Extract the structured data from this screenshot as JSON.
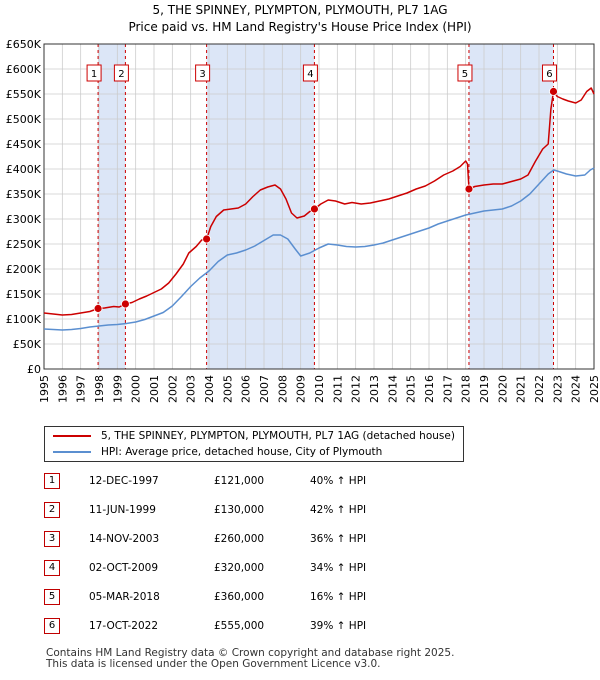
{
  "title": {
    "line1": "5, THE SPINNEY, PLYMPTON, PLYMOUTH, PL7 1AG",
    "line2": "Price paid vs. HM Land Registry's House Price Index (HPI)"
  },
  "colors": {
    "property": "#cc0000",
    "hpi": "#5b8fd0",
    "shade": "#dce6f7",
    "vline": "#cc0000",
    "grid": "#cccccc"
  },
  "chart_data": {
    "type": "line",
    "xlim": [
      1995,
      2025
    ],
    "ylim": [
      0,
      650000
    ],
    "yticks": [
      {
        "value": 0,
        "label": "£0"
      },
      {
        "value": 50000,
        "label": "£50K"
      },
      {
        "value": 100000,
        "label": "£100K"
      },
      {
        "value": 150000,
        "label": "£150K"
      },
      {
        "value": 200000,
        "label": "£200K"
      },
      {
        "value": 250000,
        "label": "£250K"
      },
      {
        "value": 300000,
        "label": "£300K"
      },
      {
        "value": 350000,
        "label": "£350K"
      },
      {
        "value": 400000,
        "label": "£400K"
      },
      {
        "value": 450000,
        "label": "£450K"
      },
      {
        "value": 500000,
        "label": "£500K"
      },
      {
        "value": 550000,
        "label": "£550K"
      },
      {
        "value": 600000,
        "label": "£600K"
      },
      {
        "value": 650000,
        "label": "£650K"
      }
    ],
    "xticks": [
      "1995",
      "1996",
      "1997",
      "1998",
      "1999",
      "2000",
      "2001",
      "2002",
      "2003",
      "2004",
      "2005",
      "2006",
      "2007",
      "2008",
      "2009",
      "2010",
      "2011",
      "2012",
      "2013",
      "2014",
      "2015",
      "2016",
      "2017",
      "2018",
      "2019",
      "2020",
      "2021",
      "2022",
      "2023",
      "2024",
      "2025"
    ],
    "grid": true,
    "shaded_ranges": [
      [
        1997.95,
        1999.44
      ],
      [
        2003.87,
        2009.75
      ],
      [
        2018.18,
        2022.79
      ]
    ],
    "series": [
      {
        "name": "5, THE SPINNEY, PLYMPTON, PLYMOUTH, PL7 1AG (detached house)",
        "color": "#cc0000",
        "points": [
          [
            1995.0,
            112000
          ],
          [
            1995.5,
            110000
          ],
          [
            1996.0,
            108000
          ],
          [
            1996.5,
            109000
          ],
          [
            1997.0,
            112000
          ],
          [
            1997.5,
            115000
          ],
          [
            1997.95,
            121000
          ],
          [
            1998.3,
            122000
          ],
          [
            1998.8,
            125000
          ],
          [
            1999.1,
            124000
          ],
          [
            1999.44,
            130000
          ],
          [
            1999.8,
            133000
          ],
          [
            2000.2,
            140000
          ],
          [
            2000.6,
            146000
          ],
          [
            2001.0,
            153000
          ],
          [
            2001.4,
            160000
          ],
          [
            2001.8,
            172000
          ],
          [
            2002.2,
            190000
          ],
          [
            2002.6,
            210000
          ],
          [
            2002.9,
            232000
          ],
          [
            2003.3,
            245000
          ],
          [
            2003.6,
            258000
          ],
          [
            2003.87,
            260000
          ],
          [
            2004.1,
            285000
          ],
          [
            2004.4,
            305000
          ],
          [
            2004.8,
            318000
          ],
          [
            2005.2,
            320000
          ],
          [
            2005.6,
            322000
          ],
          [
            2006.0,
            330000
          ],
          [
            2006.4,
            345000
          ],
          [
            2006.8,
            358000
          ],
          [
            2007.2,
            364000
          ],
          [
            2007.6,
            368000
          ],
          [
            2007.9,
            360000
          ],
          [
            2008.2,
            340000
          ],
          [
            2008.5,
            312000
          ],
          [
            2008.8,
            302000
          ],
          [
            2009.2,
            306000
          ],
          [
            2009.5,
            315000
          ],
          [
            2009.75,
            320000
          ],
          [
            2010.1,
            330000
          ],
          [
            2010.5,
            338000
          ],
          [
            2010.9,
            336000
          ],
          [
            2011.4,
            330000
          ],
          [
            2011.8,
            333000
          ],
          [
            2012.3,
            330000
          ],
          [
            2012.8,
            332000
          ],
          [
            2013.3,
            336000
          ],
          [
            2013.8,
            340000
          ],
          [
            2014.3,
            346000
          ],
          [
            2014.8,
            352000
          ],
          [
            2015.3,
            360000
          ],
          [
            2015.8,
            366000
          ],
          [
            2016.3,
            376000
          ],
          [
            2016.8,
            388000
          ],
          [
            2017.3,
            396000
          ],
          [
            2017.7,
            405000
          ],
          [
            2018.0,
            416000
          ],
          [
            2018.1,
            410000
          ],
          [
            2018.18,
            360000
          ],
          [
            2018.5,
            365000
          ],
          [
            2019.0,
            368000
          ],
          [
            2019.5,
            370000
          ],
          [
            2020.0,
            370000
          ],
          [
            2020.5,
            375000
          ],
          [
            2021.0,
            380000
          ],
          [
            2021.4,
            388000
          ],
          [
            2021.8,
            415000
          ],
          [
            2022.2,
            440000
          ],
          [
            2022.5,
            450000
          ],
          [
            2022.65,
            520000
          ],
          [
            2022.79,
            555000
          ],
          [
            2023.0,
            545000
          ],
          [
            2023.3,
            540000
          ],
          [
            2023.6,
            536000
          ],
          [
            2024.0,
            532000
          ],
          [
            2024.3,
            538000
          ],
          [
            2024.6,
            555000
          ],
          [
            2024.85,
            562000
          ],
          [
            2025.0,
            550000
          ]
        ]
      },
      {
        "name": "HPI: Average price, detached house, City of Plymouth",
        "color": "#5b8fd0",
        "points": [
          [
            1995.0,
            80000
          ],
          [
            1995.5,
            79000
          ],
          [
            1996.0,
            78000
          ],
          [
            1996.5,
            79000
          ],
          [
            1997.0,
            81000
          ],
          [
            1997.5,
            84000
          ],
          [
            1998.0,
            86000
          ],
          [
            1998.5,
            88000
          ],
          [
            1999.0,
            89000
          ],
          [
            1999.5,
            91000
          ],
          [
            2000.0,
            94000
          ],
          [
            2000.5,
            99000
          ],
          [
            2001.0,
            106000
          ],
          [
            2001.5,
            113000
          ],
          [
            2002.0,
            126000
          ],
          [
            2002.5,
            145000
          ],
          [
            2003.0,
            165000
          ],
          [
            2003.5,
            182000
          ],
          [
            2004.0,
            196000
          ],
          [
            2004.5,
            215000
          ],
          [
            2005.0,
            228000
          ],
          [
            2005.5,
            232000
          ],
          [
            2006.0,
            238000
          ],
          [
            2006.5,
            246000
          ],
          [
            2007.0,
            257000
          ],
          [
            2007.5,
            268000
          ],
          [
            2007.9,
            268000
          ],
          [
            2008.3,
            260000
          ],
          [
            2008.7,
            240000
          ],
          [
            2009.0,
            226000
          ],
          [
            2009.5,
            232000
          ],
          [
            2010.0,
            242000
          ],
          [
            2010.5,
            250000
          ],
          [
            2011.0,
            248000
          ],
          [
            2011.5,
            245000
          ],
          [
            2012.0,
            244000
          ],
          [
            2012.5,
            245000
          ],
          [
            2013.0,
            248000
          ],
          [
            2013.5,
            252000
          ],
          [
            2014.0,
            258000
          ],
          [
            2014.5,
            264000
          ],
          [
            2015.0,
            270000
          ],
          [
            2015.5,
            276000
          ],
          [
            2016.0,
            282000
          ],
          [
            2016.5,
            290000
          ],
          [
            2017.0,
            296000
          ],
          [
            2017.5,
            302000
          ],
          [
            2018.0,
            308000
          ],
          [
            2018.5,
            312000
          ],
          [
            2019.0,
            316000
          ],
          [
            2019.5,
            318000
          ],
          [
            2020.0,
            320000
          ],
          [
            2020.5,
            326000
          ],
          [
            2021.0,
            336000
          ],
          [
            2021.5,
            350000
          ],
          [
            2022.0,
            370000
          ],
          [
            2022.5,
            390000
          ],
          [
            2022.8,
            398000
          ],
          [
            2023.0,
            396000
          ],
          [
            2023.5,
            390000
          ],
          [
            2024.0,
            386000
          ],
          [
            2024.5,
            388000
          ],
          [
            2024.8,
            398000
          ],
          [
            2025.0,
            402000
          ]
        ]
      }
    ],
    "sales": [
      {
        "label": "1",
        "year": 1997.95,
        "price": 121000
      },
      {
        "label": "2",
        "year": 1999.44,
        "price": 130000
      },
      {
        "label": "3",
        "year": 2003.87,
        "price": 260000
      },
      {
        "label": "4",
        "year": 2009.75,
        "price": 320000
      },
      {
        "label": "5",
        "year": 2018.18,
        "price": 360000
      },
      {
        "label": "6",
        "year": 2022.79,
        "price": 555000
      }
    ]
  },
  "legend": {
    "property": "5, THE SPINNEY, PLYMPTON, PLYMOUTH, PL7 1AG (detached house)",
    "hpi": "HPI: Average price, detached house, City of Plymouth"
  },
  "sales_table": [
    {
      "num": "1",
      "date": "12-DEC-1997",
      "price": "£121,000",
      "hpi": "40% ↑ HPI"
    },
    {
      "num": "2",
      "date": "11-JUN-1999",
      "price": "£130,000",
      "hpi": "42% ↑ HPI"
    },
    {
      "num": "3",
      "date": "14-NOV-2003",
      "price": "£260,000",
      "hpi": "36% ↑ HPI"
    },
    {
      "num": "4",
      "date": "02-OCT-2009",
      "price": "£320,000",
      "hpi": "34% ↑ HPI"
    },
    {
      "num": "5",
      "date": "05-MAR-2018",
      "price": "£360,000",
      "hpi": "16% ↑ HPI"
    },
    {
      "num": "6",
      "date": "17-OCT-2022",
      "price": "£555,000",
      "hpi": "39% ↑ HPI"
    }
  ],
  "footer": {
    "line1": "Contains HM Land Registry data © Crown copyright and database right 2025.",
    "line2": "This data is licensed under the Open Government Licence v3.0."
  }
}
